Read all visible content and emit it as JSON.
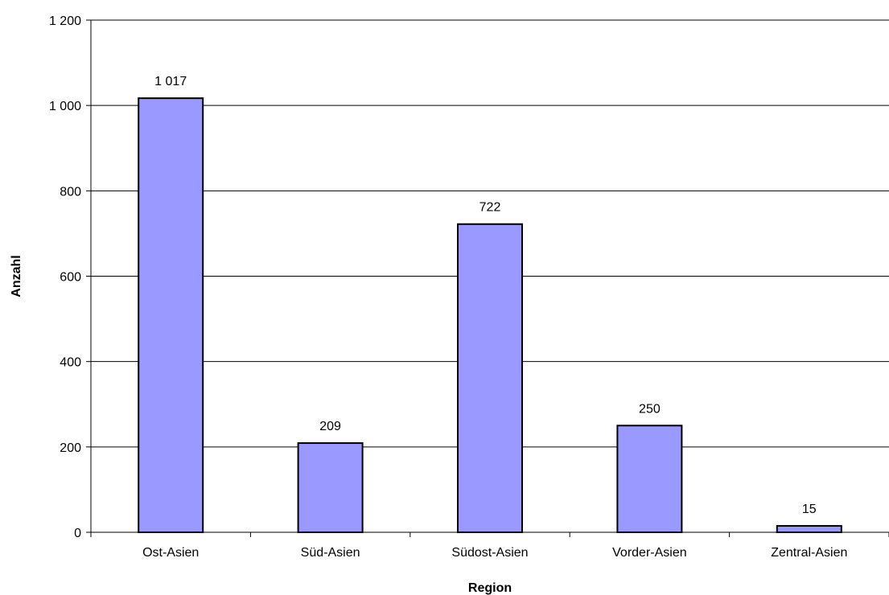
{
  "chart_data": {
    "type": "bar",
    "categories": [
      "Ost-Asien",
      "Süd-Asien",
      "Südost-Asien",
      "Vorder-Asien",
      "Zentral-Asien"
    ],
    "values": [
      1017,
      209,
      722,
      250,
      15
    ],
    "value_labels": [
      "1 017",
      "209",
      "722",
      "250",
      "15"
    ],
    "title": "",
    "xlabel": "Region",
    "ylabel": "Anzahl",
    "ylim": [
      0,
      1200
    ],
    "yticks": [
      0,
      200,
      400,
      600,
      800,
      1000,
      1200
    ],
    "ytick_labels": [
      "0",
      "200",
      "400",
      "600",
      "800",
      "1 000",
      "1 200"
    ],
    "grid": true,
    "legend": "none",
    "bar_color": "#9999ff",
    "bar_edge_color": "#000000"
  }
}
